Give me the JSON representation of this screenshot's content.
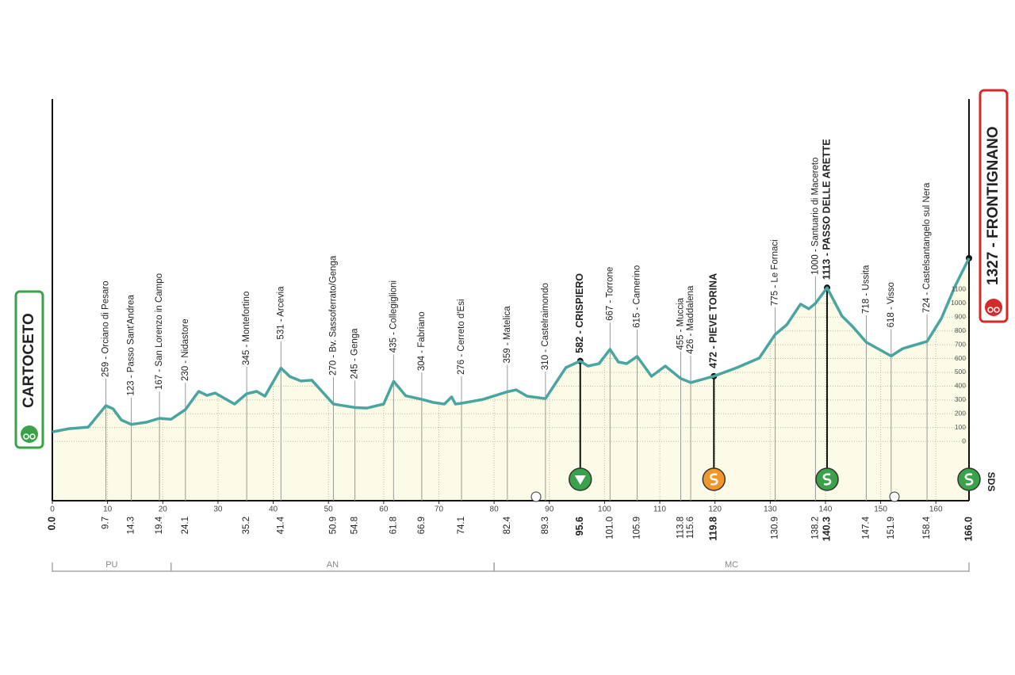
{
  "chart_data": {
    "type": "area",
    "color": "#4aa5a0",
    "fill": "#fbfbe8",
    "grid": true,
    "brand": "SDS",
    "xlim": [
      0,
      166
    ],
    "ylim": [
      -430,
      2480
    ],
    "xticks": [
      0,
      10,
      20,
      30,
      40,
      50,
      60,
      70,
      80,
      90,
      100,
      110,
      120,
      130,
      140,
      150,
      160
    ],
    "yticks": [
      0,
      100,
      200,
      300,
      400,
      500,
      600,
      700,
      800,
      900,
      1000,
      1100
    ],
    "x": [
      0,
      3,
      5,
      6.5,
      8.5,
      9.7,
      11,
      12.5,
      14.3,
      17,
      19.4,
      21.5,
      24.1,
      26.5,
      28,
      29.5,
      33,
      35.2,
      37,
      38.5,
      41.4,
      43,
      45,
      47,
      50.9,
      52.5,
      54.8,
      57,
      60,
      61.8,
      64,
      66.9,
      69,
      71,
      72.3,
      73,
      74.1,
      78,
      82.4,
      84,
      86,
      89.3,
      93,
      95.6,
      97,
      99,
      101,
      102.5,
      104,
      105.9,
      108.5,
      111,
      113.8,
      115.6,
      119.8,
      124,
      128,
      130.9,
      133,
      135.5,
      137,
      138.2,
      140.3,
      143,
      145,
      147.4,
      151.9,
      154,
      158.4,
      161,
      163.5,
      166
    ],
    "values": [
      69,
      92,
      98,
      103,
      200,
      259,
      236,
      155,
      123,
      138,
      167,
      160,
      230,
      362,
      333,
      350,
      270,
      345,
      362,
      327,
      531,
      470,
      437,
      443,
      270,
      260,
      245,
      241,
      270,
      435,
      330,
      304,
      282,
      270,
      322,
      270,
      276,
      304,
      359,
      373,
      327,
      310,
      534,
      582,
      546,
      563,
      667,
      575,
      563,
      615,
      471,
      546,
      455,
      426,
      472,
      534,
      603,
      775,
      845,
      994,
      960,
      1000,
      1113,
      908,
      828,
      718,
      618,
      672,
      724,
      891,
      1126,
      1327
    ],
    "start": {
      "label": "CARTOCETO",
      "km": {
        "value": 0,
        "label": "0.0"
      }
    },
    "finish": {
      "label": "1327 - FRONTIGNANO",
      "altitude": 1327,
      "km": {
        "value": 166,
        "label": "166.0"
      },
      "icon": "climb"
    },
    "waypoints": [
      {
        "km": 9.7,
        "altitude": 259,
        "label": "259 - Orciano di Pesaro"
      },
      {
        "km": 14.3,
        "altitude": 123,
        "label": "123 - Passo Sant'Andrea"
      },
      {
        "km": 19.4,
        "altitude": 167,
        "label": "167 - San Lorenzo in Campo"
      },
      {
        "km": 24.1,
        "altitude": 230,
        "label": "230 - Nidastore"
      },
      {
        "km": 35.2,
        "altitude": 345,
        "label": "345 - Montefortino"
      },
      {
        "km": 41.4,
        "altitude": 531,
        "label": "531 - Arcevia"
      },
      {
        "km": 50.9,
        "altitude": 270,
        "label": "270 - Bv. Sassoferrato/Genga"
      },
      {
        "km": 54.8,
        "altitude": 245,
        "label": "245 - Genga"
      },
      {
        "km": 61.8,
        "altitude": 435,
        "label": "435 - Collegiglioni"
      },
      {
        "km": 66.9,
        "altitude": 304,
        "label": "304 - Fabriano"
      },
      {
        "km": 74.1,
        "altitude": 276,
        "label": "276 - Cerreto d'Esi"
      },
      {
        "km": 82.4,
        "altitude": 359,
        "label": "359 - Matelica"
      },
      {
        "km": 89.3,
        "altitude": 310,
        "label": "310 - Castelraimondo"
      },
      {
        "km": 95.6,
        "altitude": 582,
        "label": "582 - CRISPIERO",
        "bold": true,
        "icon": "descent"
      },
      {
        "km": {
          "value": 101,
          "label": "101.0"
        },
        "altitude": 667,
        "label": "667 - Torrone"
      },
      {
        "km": 105.9,
        "altitude": 615,
        "label": "615 - Camerino"
      },
      {
        "km": 113.8,
        "altitude": 455,
        "label": "455 - Muccia"
      },
      {
        "km": 115.6,
        "altitude": 426,
        "label": "426 - Maddalena"
      },
      {
        "km": 119.8,
        "altitude": 472,
        "label": "472 - PIEVE TORINA",
        "bold": true,
        "icon": "sprint"
      },
      {
        "km": 130.9,
        "altitude": 775,
        "label": "775 - Le Fornaci"
      },
      {
        "km": 138.2,
        "altitude": 1000,
        "label": "1000 - Santuario di Macereto"
      },
      {
        "km": 140.3,
        "altitude": 1113,
        "label": "1113 - PASSO DELLE ARETTE",
        "bold": true,
        "icon": "climb"
      },
      {
        "km": 147.4,
        "altitude": 718,
        "label": "718 - Ussita"
      },
      {
        "km": 151.9,
        "altitude": 618,
        "label": "618 - Visso"
      },
      {
        "km": 158.4,
        "altitude": 724,
        "label": "724 - Castelsantangelo sul Nera"
      }
    ],
    "regions": [
      {
        "label": "PU",
        "from_km": 0,
        "to_km": 21.5
      },
      {
        "label": "AN",
        "from_km": 21.5,
        "to_km": 80
      },
      {
        "label": "MC",
        "from_km": 80,
        "to_km": 166
      }
    ]
  }
}
